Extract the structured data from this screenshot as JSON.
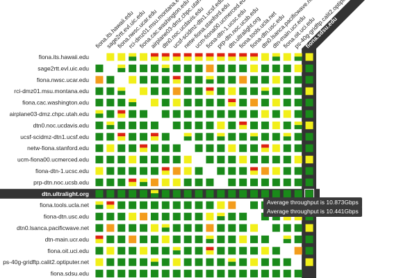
{
  "hosts": [
    "fiona.its.hawaii.edu",
    "sage2rtt.evl.uic.edu",
    "fiona.nwsc.ucar.edu",
    "rci-dmz01.msu.montana.edu",
    "fiona.cac.washington.edu",
    "airplane03-dmz.chpc.utah.edu",
    "dtn0.noc.ucdavis.edu",
    "ucsf-scidmz-dtn1.ucsf.edu",
    "netw-fiona.stanford.edu",
    "ucm-fiona00.ucmerced.edu",
    "fiona-dtn-1.ucsc.edu",
    "prp-dtn.noc.ucsb.edu",
    "dtn.ultralight.org",
    "fiona.tools.ucla.net",
    "fiona-dtn.usc.edu",
    "dtn0.lsanca.pacificwave.net",
    "dtn-main.ucr.edu",
    "fiona.oit.uci.edu",
    "ps-40g-gridftp.calit2.optiputer.net",
    "fiona.sdsu.edu"
  ],
  "highlighted_row": "dtn.ultralight.org",
  "highlighted_column": "fiona.sdsu.edu",
  "tooltips": [
    "Average throughput is 10.873Gbps",
    "Average throughput is 10.441Gbps"
  ],
  "colors": {
    "green": "#1a8a1a",
    "yellow": "#f2ef1a",
    "orange": "#f39c1c",
    "red": "#dd2211",
    "highlight_band": "#333333"
  }
}
